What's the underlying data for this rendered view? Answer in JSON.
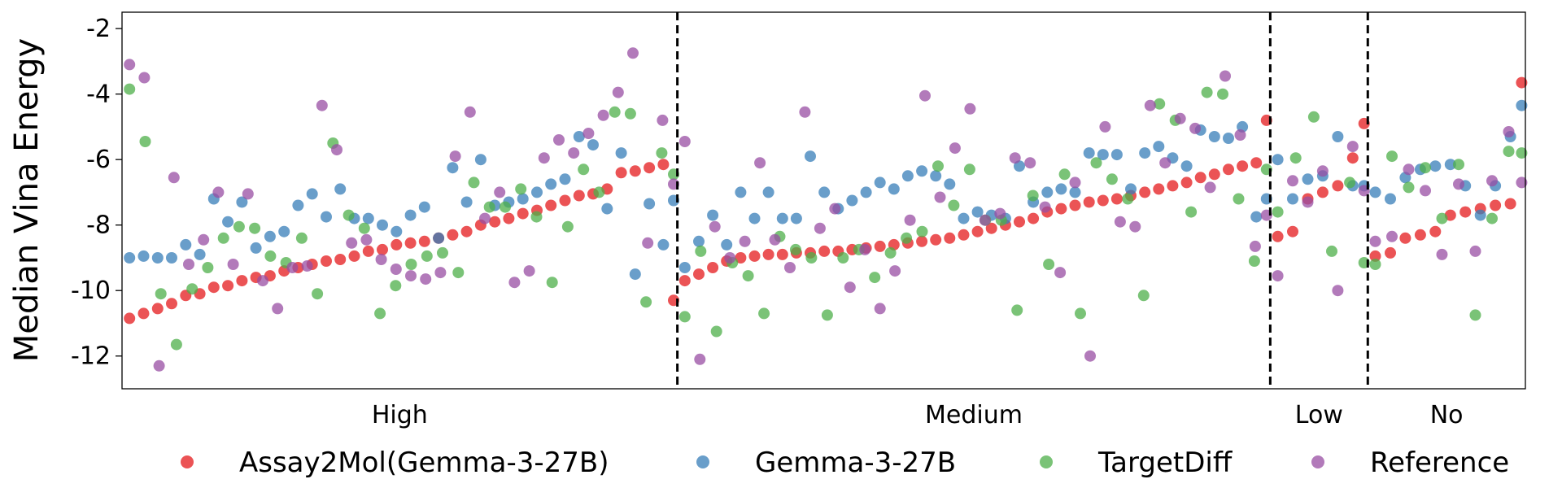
{
  "chart_data": {
    "type": "scatter",
    "title": "",
    "xlabel": "",
    "ylabel": "Median Vina Energy",
    "ylim": [
      -13,
      -1.5
    ],
    "yticks": [
      -2,
      -4,
      -6,
      -8,
      -10,
      -12
    ],
    "ytick_labels": [
      "-2",
      "-4",
      "-6",
      "-8",
      "-10",
      "-12"
    ],
    "xlim": [
      -0.5,
      186.5
    ],
    "grid": false,
    "legend_position": "bottom",
    "groups": [
      {
        "label": "High",
        "start": 0,
        "end": 73
      },
      {
        "label": "Medium",
        "start": 74,
        "end": 152
      },
      {
        "label": "Low",
        "start": 153,
        "end": 165
      },
      {
        "label": "No",
        "start": 166,
        "end": 186
      }
    ],
    "series": [
      {
        "name": "Assay2Mol(Gemma-3-27B)",
        "color": "#e41a1c",
        "values": [
          -10.85,
          -10.7,
          -10.55,
          -10.4,
          -10.15,
          -10.1,
          -9.9,
          -9.85,
          -9.7,
          -9.6,
          -9.55,
          -9.4,
          -9.3,
          -9.2,
          -9.1,
          -9.05,
          -8.95,
          -8.8,
          -8.75,
          -8.6,
          -8.55,
          -8.5,
          -8.4,
          -8.3,
          -8.2,
          -8.0,
          -7.9,
          -7.8,
          -7.65,
          -7.55,
          -7.4,
          -7.25,
          -7.1,
          -7.05,
          -6.9,
          -6.4,
          -6.35,
          -6.25,
          -6.15,
          -10.3,
          -9.7,
          -9.5,
          -9.3,
          -9.1,
          -9.0,
          -8.95,
          -8.9,
          -8.9,
          -8.85,
          -8.85,
          -8.8,
          -8.8,
          -8.75,
          -8.7,
          -8.65,
          -8.6,
          -8.55,
          -8.5,
          -8.45,
          -8.4,
          -8.3,
          -8.2,
          -8.1,
          -8.0,
          -7.9,
          -7.8,
          -7.6,
          -7.5,
          -7.4,
          -7.3,
          -7.25,
          -7.2,
          -7.1,
          -7.0,
          -6.9,
          -6.8,
          -6.7,
          -6.55,
          -6.45,
          -6.3,
          -6.2,
          -6.1,
          -4.8,
          -8.35,
          -8.2,
          -7.2,
          -7.0,
          -6.8,
          -5.95,
          -4.9,
          -8.95,
          -8.85,
          -8.4,
          -8.3,
          -8.2,
          -7.7,
          -7.6,
          -7.5,
          -7.4,
          -7.35,
          -3.65
        ]
      },
      {
        "name": "Gemma-3-27B",
        "color": "#377eb8",
        "values": [
          -9.0,
          -8.95,
          -9.0,
          -9.0,
          -8.6,
          -8.9,
          -7.2,
          -7.9,
          -7.3,
          -8.7,
          -8.35,
          -8.2,
          -7.4,
          -7.05,
          -7.75,
          -6.9,
          -7.8,
          -7.8,
          -8.0,
          -8.2,
          -7.7,
          -7.45,
          -8.4,
          -6.25,
          -7.3,
          -6.0,
          -7.4,
          -7.3,
          -7.2,
          -7.0,
          -6.75,
          -6.6,
          -5.3,
          -5.55,
          -7.5,
          -5.8,
          -9.5,
          -7.35,
          -8.6,
          -7.25,
          -9.3,
          -8.5,
          -7.7,
          -8.6,
          -7.0,
          -7.8,
          -7.0,
          -7.8,
          -7.8,
          -5.9,
          -7.0,
          -7.5,
          -7.25,
          -7.0,
          -6.7,
          -6.9,
          -6.5,
          -6.35,
          -6.5,
          -6.75,
          -7.8,
          -7.6,
          -7.7,
          -7.8,
          -6.2,
          -7.3,
          -7.0,
          -6.9,
          -7.0,
          -5.8,
          -5.85,
          -5.85,
          -6.9,
          -5.8,
          -5.6,
          -5.95,
          -6.2,
          -5.1,
          -5.3,
          -5.35,
          -5.0,
          -7.75,
          -7.2,
          -6.0,
          -7.2,
          -6.6,
          -6.5,
          -5.3,
          -6.8,
          -6.8,
          -7.0,
          -7.2,
          -6.55,
          -6.3,
          -6.2,
          -6.15,
          -6.8,
          -7.7,
          -6.8,
          -5.3,
          -4.35
        ]
      },
      {
        "name": "TargetDiff",
        "color": "#4daf4a",
        "values": [
          -3.85,
          -5.45,
          -10.1,
          -11.65,
          -9.95,
          -9.3,
          -8.4,
          -8.05,
          -8.1,
          -8.95,
          -9.15,
          -8.4,
          -10.1,
          -5.5,
          -7.7,
          -8.1,
          -10.7,
          -9.85,
          -9.2,
          -8.95,
          -8.85,
          -9.45,
          -6.7,
          -7.45,
          -7.45,
          -6.9,
          -7.75,
          -9.75,
          -8.05,
          -6.3,
          -7.0,
          -4.55,
          -4.6,
          -10.35,
          -5.8,
          -6.45,
          -10.8,
          -8.8,
          -11.25,
          -9.15,
          -9.55,
          -10.7,
          -8.35,
          -8.75,
          -9.0,
          -10.75,
          -9.0,
          -8.75,
          -9.6,
          -8.85,
          -8.4,
          -8.2,
          -6.2,
          -7.4,
          -6.3,
          -7.85,
          -7.85,
          -10.6,
          -7.1,
          -9.2,
          -6.45,
          -10.7,
          -6.1,
          -6.6,
          -7.2,
          -10.15,
          -4.3,
          -4.8,
          -7.6,
          -3.95,
          -4.0,
          -7.2,
          -9.1,
          -6.3,
          -7.6,
          -5.95,
          -4.7,
          -8.8,
          -6.7,
          -9.15,
          -9.2,
          -5.9,
          -6.85,
          -6.25,
          -7.8,
          -6.15,
          -10.75,
          -7.8,
          -5.75,
          -5.8
        ]
      },
      {
        "name": "Reference",
        "color": "#984ea3",
        "values": [
          -3.1,
          -3.5,
          -12.3,
          -6.55,
          -9.2,
          -8.45,
          -7.0,
          -9.2,
          -7.05,
          -9.7,
          -10.55,
          -9.3,
          -9.25,
          -4.35,
          -5.7,
          -8.55,
          -8.45,
          -9.05,
          -9.35,
          -9.55,
          -9.65,
          -9.45,
          -5.9,
          -4.55,
          -7.8,
          -7.0,
          -9.75,
          -9.4,
          -5.95,
          -5.4,
          -5.8,
          -5.2,
          -4.65,
          -3.95,
          -2.75,
          -8.55,
          -4.8,
          -6.75,
          -5.45,
          -12.1,
          -8.05,
          -9.0,
          -8.5,
          -6.1,
          -8.45,
          -9.3,
          -4.55,
          -8.1,
          -7.5,
          -9.9,
          -8.75,
          -10.55,
          -9.4,
          -7.85,
          -4.05,
          -7.15,
          -5.65,
          -4.45,
          -7.85,
          -7.65,
          -5.95,
          -6.1,
          -7.45,
          -9.45,
          -6.7,
          -12.0,
          -5.0,
          -7.9,
          -8.05,
          -4.35,
          -6.1,
          -4.75,
          -5.05,
          -6.85,
          -3.45,
          -5.25,
          -8.65,
          -7.7,
          -9.55,
          -6.65,
          -7.3,
          -6.35,
          -10.0,
          -5.6,
          -6.95,
          -8.5,
          -8.35,
          -6.3,
          -6.95,
          -8.9,
          -6.75,
          -8.8,
          -6.65,
          -5.15,
          -6.7
        ]
      }
    ]
  }
}
